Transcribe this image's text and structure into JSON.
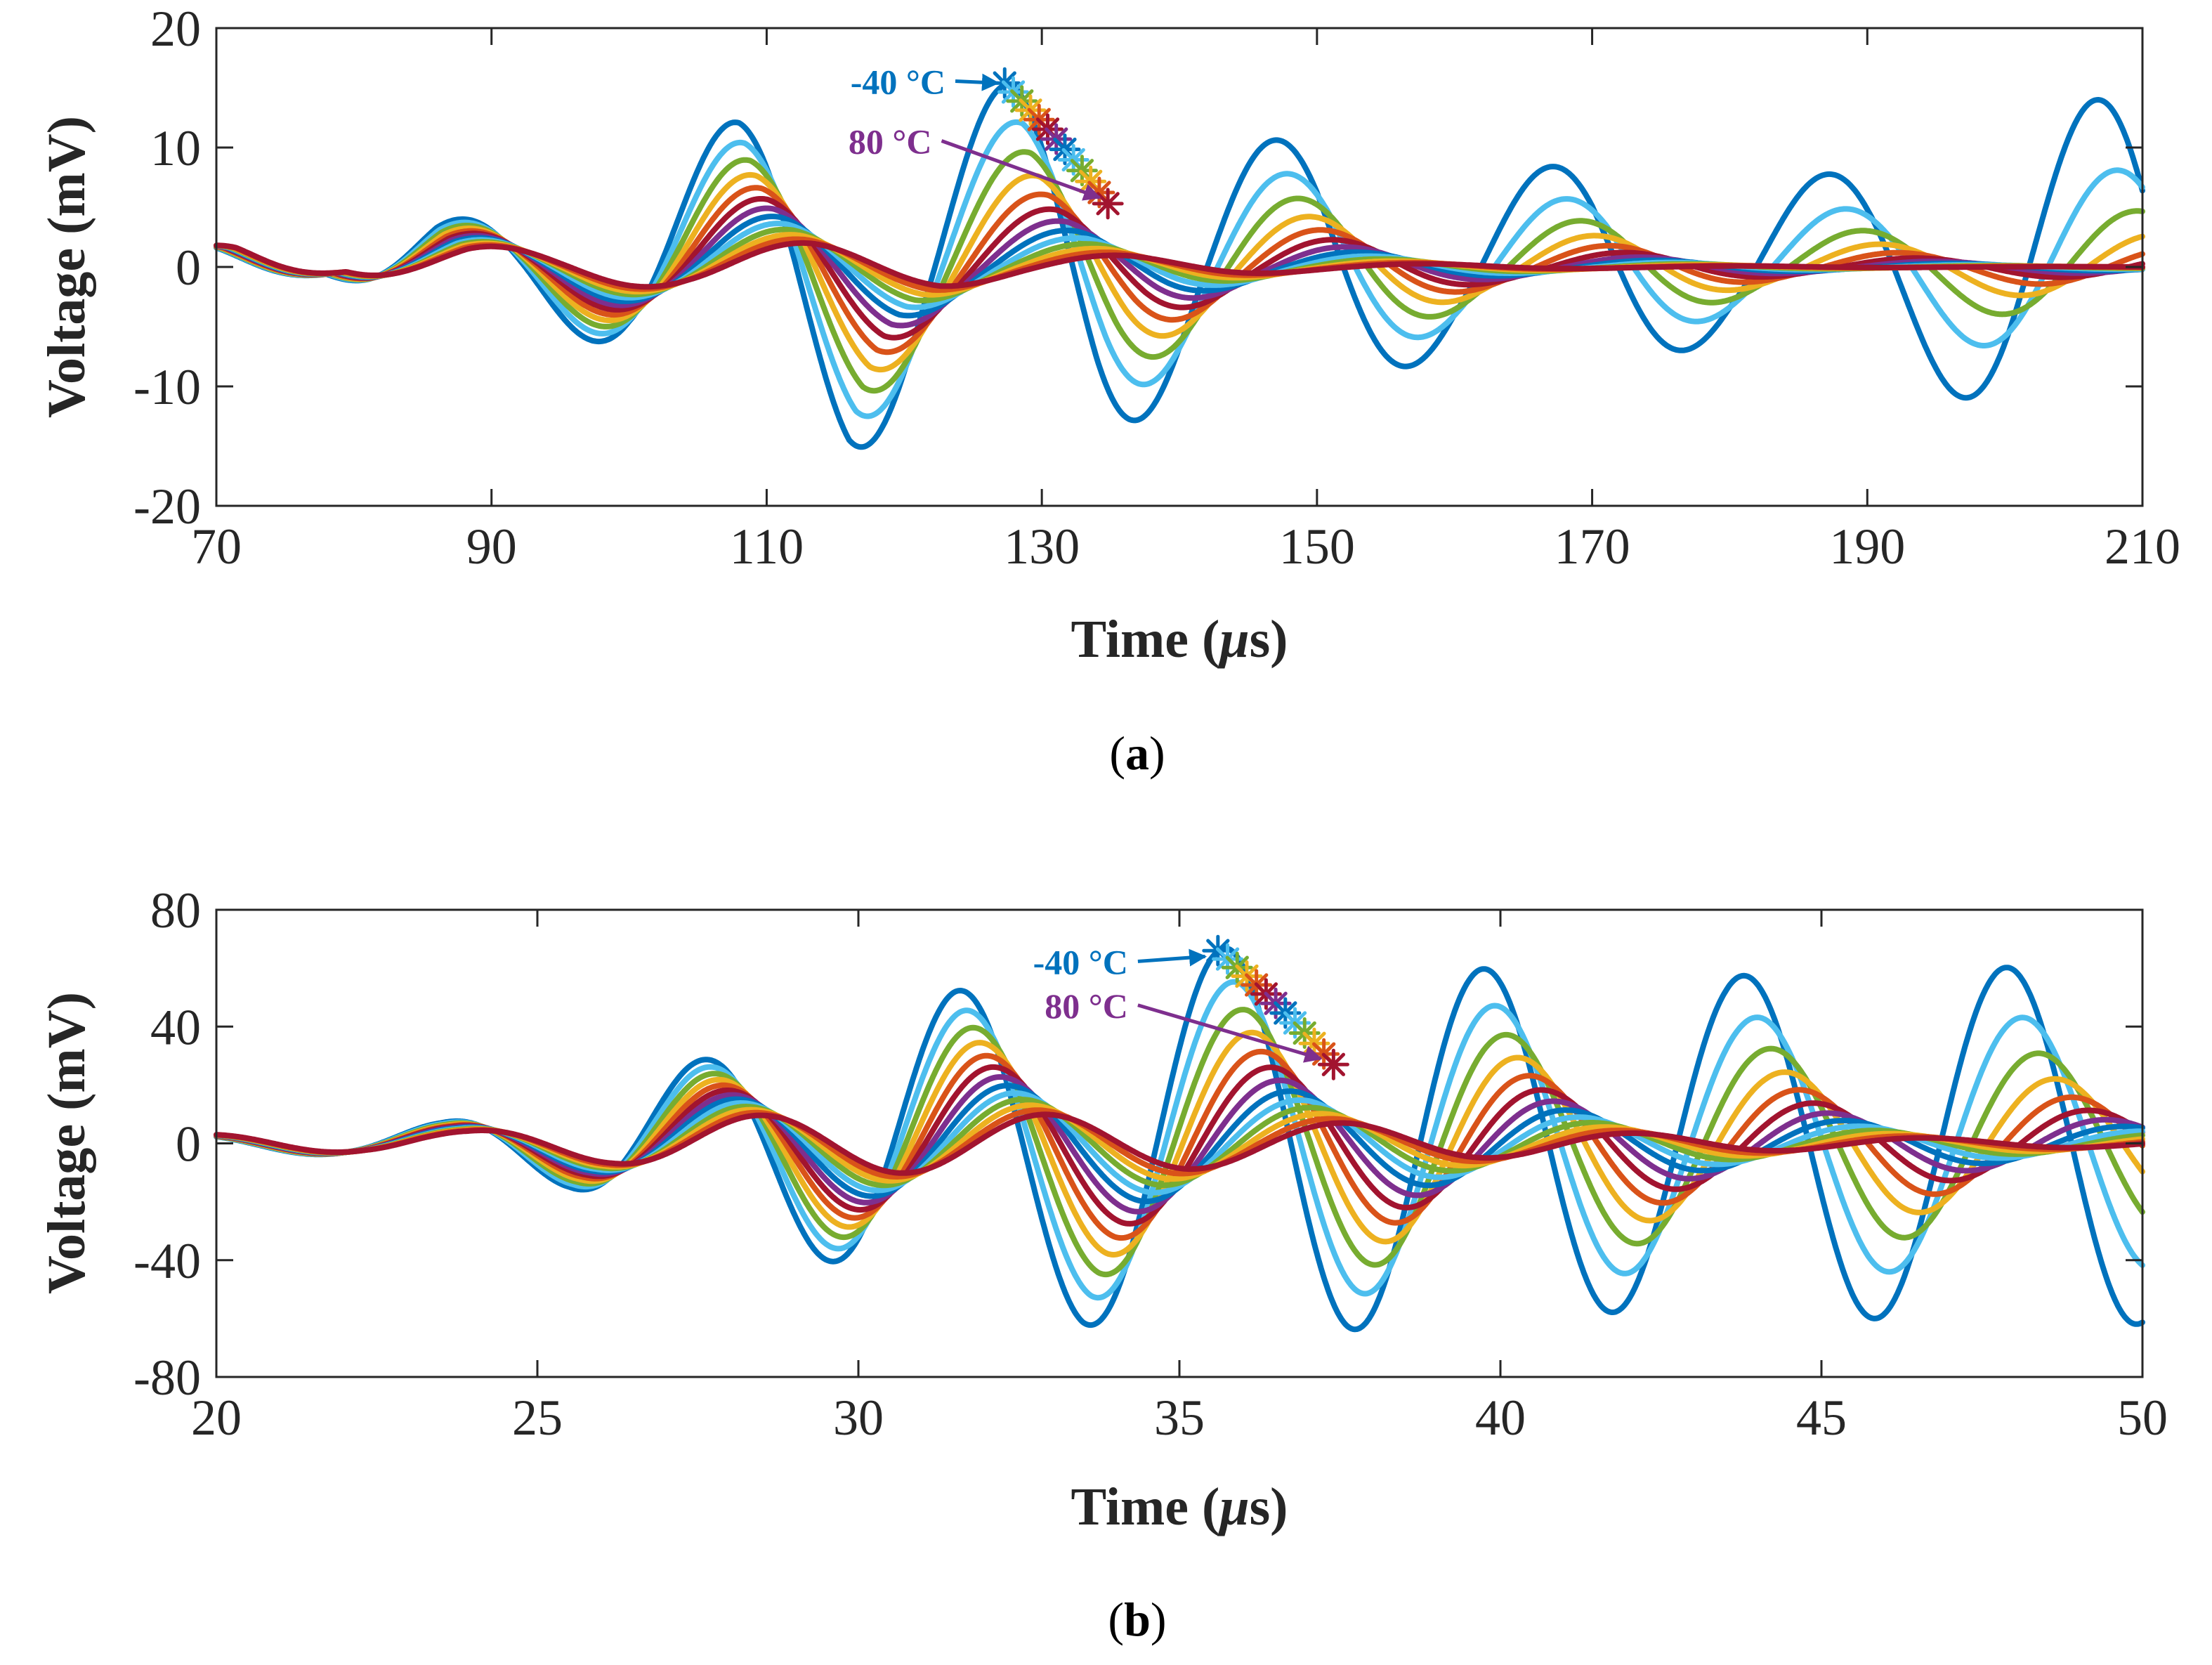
{
  "colors": [
    "#0072BD",
    "#4DBEEE",
    "#77AC30",
    "#EDB120",
    "#D95319",
    "#A2142F",
    "#7E2F8E"
  ],
  "chart_data": [
    {
      "type": "line",
      "panel": "a",
      "panel_label": "a",
      "xlabel_main": "Time (",
      "xlabel_mu": "μ",
      "xlabel_tail": "s)",
      "ylabel": "Voltage (mV)",
      "xlim": [
        70,
        210
      ],
      "ylim": [
        -20,
        20
      ],
      "xticks": [
        70,
        90,
        110,
        130,
        150,
        170,
        190,
        210
      ],
      "yticks": [
        20,
        10,
        0,
        -10,
        -20
      ],
      "series_count": 13,
      "temperature_range": [
        -40,
        80
      ],
      "shift": 0.6,
      "decay": 0.004,
      "wave": {
        "env_x": [
          70,
          78,
          86,
          92,
          100,
          108,
          116,
          122,
          128,
          134,
          142,
          150,
          160,
          170,
          180,
          190,
          200,
          210
        ],
        "env_y": [
          1.8,
          0.6,
          3.8,
          4.5,
          7.0,
          12.5,
          15.5,
          13.0,
          15.5,
          14.5,
          10.0,
          11.0,
          7.0,
          9.0,
          6.0,
          8.5,
          12.0,
          15.0
        ],
        "period": [
          19,
          19,
          19,
          19.5,
          19.5,
          20,
          20,
          20.5,
          20,
          19.5,
          19.5,
          20,
          20,
          20,
          20,
          20,
          19.5,
          19
        ],
        "anchor_x": 127.3
      },
      "peak_start": [
        127.3,
        15.4
      ],
      "peak_end": [
        134.8,
        5.3
      ],
      "annotations": [
        {
          "text": "-40 °C",
          "color": "#0072BD",
          "label_x": 123,
          "label_y": 14.5,
          "tip_x": 126.8,
          "tip_y": 15.4
        },
        {
          "text": "80 °C",
          "color": "#7E2F8E",
          "label_x": 122,
          "label_y": 9.5,
          "tip_x": 134.2,
          "tip_y": 5.8
        }
      ]
    },
    {
      "type": "line",
      "panel": "b",
      "panel_label": "b",
      "xlabel_main": "Time (",
      "xlabel_mu": "μ",
      "xlabel_tail": "s)",
      "ylabel": "Voltage (mV)",
      "xlim": [
        20,
        50
      ],
      "ylim": [
        -80,
        80
      ],
      "xticks": [
        20,
        25,
        30,
        35,
        40,
        45,
        50
      ],
      "yticks": [
        80,
        40,
        0,
        -40,
        -80
      ],
      "series_count": 13,
      "temperature_range": [
        -40,
        80
      ],
      "shift": 0.14,
      "decay": 0.012,
      "wave": {
        "env_x": [
          20,
          22,
          23.5,
          25.5,
          27.3,
          29.5,
          31.5,
          33.5,
          35.8,
          37.6,
          39.5,
          41.5,
          43.5,
          45.5,
          47.6,
          50
        ],
        "env_y": [
          3,
          4,
          7,
          15,
          27,
          40,
          52,
          62,
          67,
          64,
          60,
          58,
          57,
          60,
          60,
          62
        ],
        "period": [
          4,
          4,
          4,
          4,
          4,
          4,
          4,
          4.2,
          4.2,
          4,
          4,
          4,
          4.1,
          4.1,
          4.1,
          4
        ],
        "anchor_x": 35.7
      },
      "peak_start": [
        35.6,
        66
      ],
      "peak_end": [
        37.4,
        27
      ],
      "annotations": [
        {
          "text": "-40 °C",
          "color": "#0072BD",
          "label_x": 34.2,
          "label_y": 58,
          "tip_x": 35.4,
          "tip_y": 64
        },
        {
          "text": "80 °C",
          "color": "#7E2F8E",
          "label_x": 34.2,
          "label_y": 43,
          "tip_x": 37.2,
          "tip_y": 29
        }
      ]
    }
  ]
}
